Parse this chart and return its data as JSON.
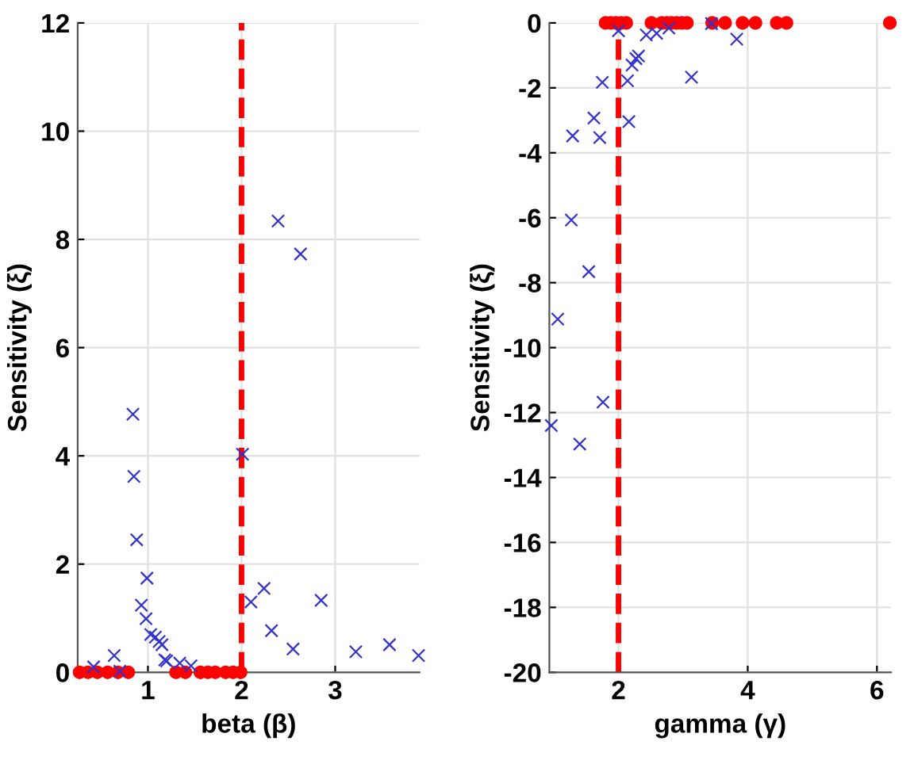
{
  "chart_data": [
    {
      "type": "scatter",
      "xlabel": "beta (β)",
      "ylabel": "Sensitivity (ξ)",
      "xlim": [
        0.25,
        3.9
      ],
      "ylim": [
        0,
        12
      ],
      "xticks": [
        1,
        2,
        3
      ],
      "yticks": [
        0,
        2,
        4,
        6,
        8,
        10,
        12
      ],
      "grid": true,
      "series": [
        {
          "color": "#ff0000",
          "marker": "circle",
          "x": [
            0.27,
            0.36,
            0.46,
            0.57,
            0.68,
            0.79,
            1.3,
            1.4,
            1.56,
            1.64,
            1.72,
            1.83,
            1.91,
            1.99
          ],
          "values": [
            0,
            0,
            0,
            0,
            0,
            0,
            0,
            0,
            0,
            0,
            0,
            0,
            0,
            0
          ]
        },
        {
          "color": "#3333cc",
          "marker": "cross",
          "x": [
            0.42,
            0.64,
            0.7,
            0.84,
            0.85,
            0.88,
            0.99,
            0.93,
            0.98,
            1.03,
            1.08,
            1.12,
            1.15,
            1.18,
            1.2,
            1.34,
            1.46,
            2.01,
            2.1,
            2.24,
            2.32,
            2.39,
            2.55,
            2.63,
            2.85,
            3.22,
            3.58,
            3.89
          ],
          "values": [
            0.1,
            0.31,
            0.02,
            4.77,
            3.62,
            2.45,
            1.74,
            1.24,
            0.99,
            0.7,
            0.65,
            0.57,
            0.51,
            0.23,
            0.21,
            0.17,
            0.12,
            4.03,
            1.3,
            1.55,
            0.77,
            8.34,
            0.43,
            7.73,
            1.33,
            0.38,
            0.51,
            0.31
          ]
        }
      ],
      "ref_lines": [
        {
          "axis": "x",
          "value": 2,
          "label": null,
          "color": "#ff0000",
          "line_style": "dashed"
        }
      ]
    },
    {
      "type": "scatter",
      "xlabel": "gamma (γ)",
      "ylabel": "Sensitivity (ξ)",
      "xlim": [
        0.93,
        6.22
      ],
      "ylim": [
        -20,
        0
      ],
      "xticks": [
        2,
        4,
        6
      ],
      "yticks": [
        -20,
        -18,
        -16,
        -14,
        -12,
        -10,
        -8,
        -6,
        -4,
        -2,
        0
      ],
      "grid": true,
      "series": [
        {
          "color": "#ff0000",
          "marker": "circle",
          "x": [
            1.8,
            1.88,
            1.96,
            2.04,
            2.12,
            2.51,
            2.67,
            2.75,
            2.82,
            2.9,
            2.98,
            3.06,
            3.45,
            3.65,
            3.92,
            4.12,
            4.45,
            4.6,
            6.2
          ],
          "values": [
            0,
            0,
            0,
            0,
            0,
            0,
            0,
            0,
            0,
            0,
            0,
            0,
            0,
            0,
            0,
            0,
            0,
            0,
            0
          ]
        },
        {
          "color": "#3333cc",
          "marker": "cross",
          "x": [
            0.96,
            1.06,
            1.27,
            1.29,
            1.4,
            1.54,
            1.62,
            1.71,
            1.75,
            1.76,
            2.0,
            2.14,
            2.16,
            2.21,
            2.27,
            2.31,
            2.43,
            2.59,
            2.78,
            3.13,
            3.44,
            3.83
          ],
          "values": [
            -12.4,
            -9.12,
            -6.07,
            -3.48,
            -12.97,
            -7.66,
            -2.93,
            -3.53,
            -1.83,
            -11.68,
            -0.24,
            -1.78,
            -3.04,
            -1.3,
            -1.1,
            -1.02,
            -0.37,
            -0.32,
            -0.16,
            -1.67,
            -0.02,
            -0.5
          ]
        }
      ],
      "ref_lines": [
        {
          "axis": "x",
          "value": 2,
          "label": null,
          "color": "#ff0000",
          "line_style": "dashed"
        }
      ]
    }
  ]
}
